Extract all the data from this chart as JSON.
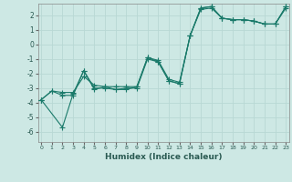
{
  "xlabel": "Humidex (Indice chaleur)",
  "background_color": "#cde8e4",
  "grid_color": "#b8d8d4",
  "line_color": "#1a7a6a",
  "x_ticks": [
    0,
    1,
    2,
    3,
    4,
    5,
    6,
    7,
    8,
    9,
    10,
    11,
    12,
    13,
    14,
    15,
    16,
    17,
    18,
    19,
    20,
    21,
    22,
    23
  ],
  "y_ticks": [
    -6,
    -5,
    -4,
    -3,
    -2,
    -1,
    0,
    1,
    2
  ],
  "xlim": [
    -0.3,
    23.3
  ],
  "ylim": [
    -6.7,
    2.8
  ],
  "series1_x": [
    0,
    1,
    2,
    3,
    4,
    5,
    6,
    7,
    8,
    9,
    10,
    11,
    12,
    13,
    14,
    15,
    16,
    17,
    18,
    19,
    20,
    21,
    22,
    23
  ],
  "series1_y": [
    -3.8,
    -3.2,
    -3.5,
    -3.5,
    -1.8,
    -3.0,
    -3.0,
    -3.1,
    -3.0,
    -3.0,
    -1.0,
    -1.2,
    -2.5,
    -2.7,
    0.6,
    2.5,
    2.6,
    1.8,
    1.7,
    1.7,
    1.6,
    1.4,
    1.4,
    2.6
  ],
  "series2_x": [
    0,
    2,
    3,
    4,
    5,
    6,
    7,
    8,
    9,
    10,
    11,
    12,
    13,
    14,
    15,
    16,
    17,
    18,
    19,
    20,
    21,
    22,
    23
  ],
  "series2_y": [
    -3.8,
    -5.7,
    -3.4,
    -1.8,
    -3.1,
    -2.9,
    -3.1,
    -3.1,
    -2.9,
    -0.9,
    -1.2,
    -2.5,
    -2.7,
    0.6,
    2.5,
    2.6,
    1.8,
    1.7,
    1.7,
    1.6,
    1.4,
    1.4,
    2.6
  ],
  "series3_x": [
    0,
    1,
    2,
    3,
    4,
    5,
    6,
    7,
    8,
    9,
    10,
    11,
    12,
    13,
    14,
    15,
    16,
    17,
    18,
    19,
    20,
    21,
    22,
    23
  ],
  "series3_y": [
    -3.8,
    -3.2,
    -3.3,
    -3.3,
    -2.2,
    -2.8,
    -2.9,
    -2.9,
    -2.9,
    -2.9,
    -0.9,
    -1.1,
    -2.4,
    -2.6,
    0.6,
    2.4,
    2.5,
    1.8,
    1.7,
    1.7,
    1.6,
    1.4,
    1.4,
    2.5
  ]
}
